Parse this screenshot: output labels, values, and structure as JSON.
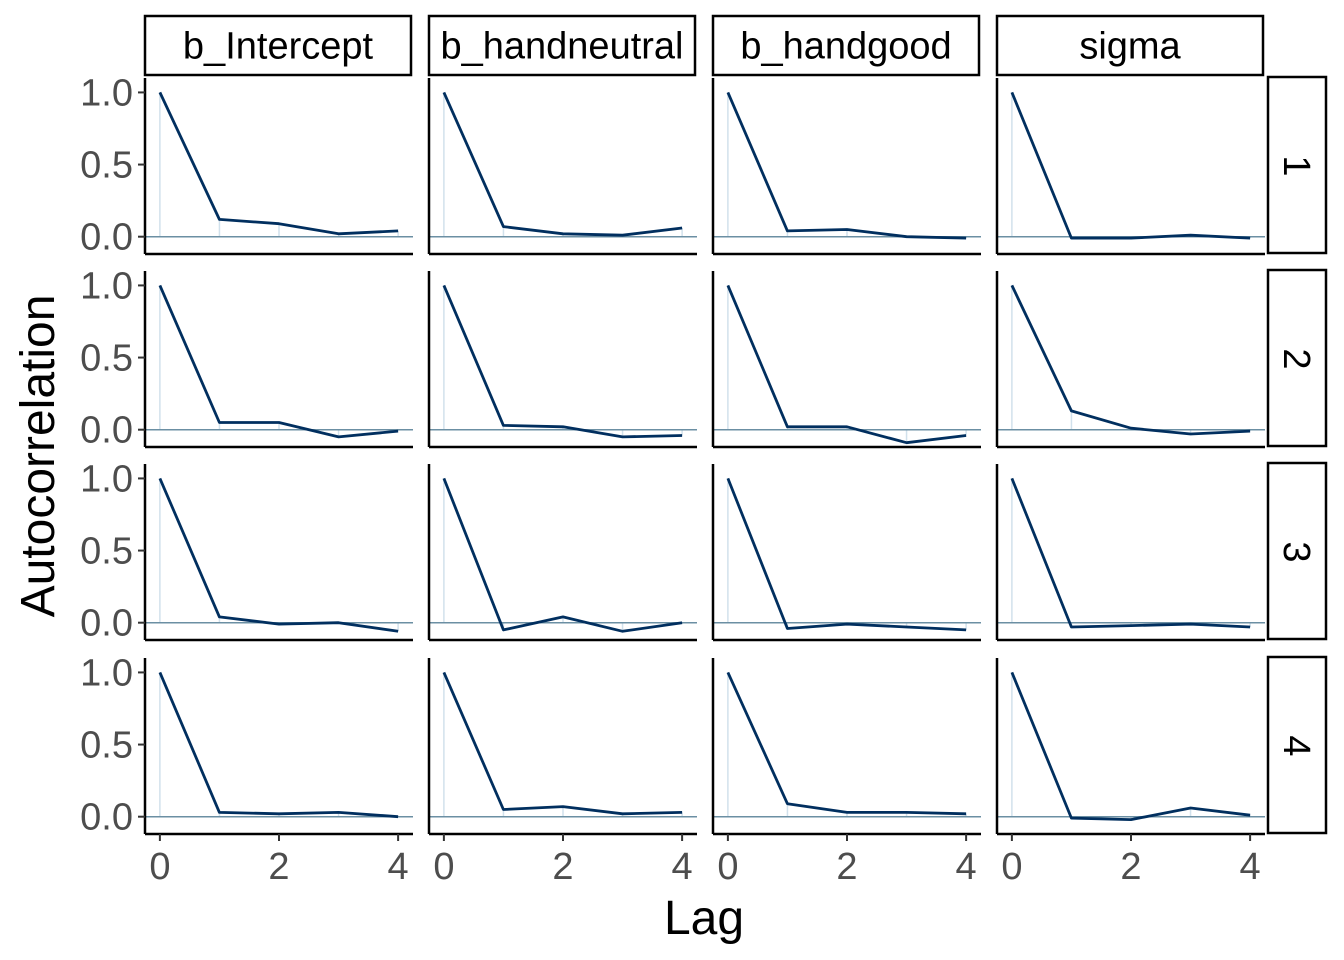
{
  "chart_data": {
    "type": "line",
    "xlabel": "Lag",
    "ylabel": "Autocorrelation",
    "x": [
      0,
      1,
      2,
      3,
      4
    ],
    "xticks": [
      "0",
      "2",
      "4"
    ],
    "yticks": [
      "0.0",
      "0.5",
      "1.0"
    ],
    "ylim": [
      -0.12,
      1.1
    ],
    "xlim": [
      -0.25,
      4.25
    ],
    "grid": false,
    "colors": {
      "line": "#012F5F",
      "zero_line": "#6B8FA3",
      "lag_bar": "#D1E1EC"
    },
    "columns": [
      "b_Intercept",
      "b_handneutral",
      "b_handgood",
      "sigma"
    ],
    "rows": [
      "1",
      "2",
      "3",
      "4"
    ],
    "series": [
      {
        "row": "1",
        "column": "b_Intercept",
        "values": [
          1.0,
          0.12,
          0.09,
          0.02,
          0.04
        ]
      },
      {
        "row": "1",
        "column": "b_handneutral",
        "values": [
          1.0,
          0.07,
          0.02,
          0.01,
          0.06
        ]
      },
      {
        "row": "1",
        "column": "b_handgood",
        "values": [
          1.0,
          0.04,
          0.05,
          0.0,
          -0.01
        ]
      },
      {
        "row": "1",
        "column": "sigma",
        "values": [
          1.0,
          -0.01,
          -0.01,
          0.01,
          -0.01
        ]
      },
      {
        "row": "2",
        "column": "b_Intercept",
        "values": [
          1.0,
          0.05,
          0.05,
          -0.05,
          -0.01
        ]
      },
      {
        "row": "2",
        "column": "b_handneutral",
        "values": [
          1.0,
          0.03,
          0.02,
          -0.05,
          -0.04
        ]
      },
      {
        "row": "2",
        "column": "b_handgood",
        "values": [
          1.0,
          0.02,
          0.02,
          -0.09,
          -0.04
        ]
      },
      {
        "row": "2",
        "column": "sigma",
        "values": [
          1.0,
          0.13,
          0.01,
          -0.03,
          -0.01
        ]
      },
      {
        "row": "3",
        "column": "b_Intercept",
        "values": [
          1.0,
          0.04,
          -0.01,
          0.0,
          -0.06
        ]
      },
      {
        "row": "3",
        "column": "b_handneutral",
        "values": [
          1.0,
          -0.05,
          0.04,
          -0.06,
          0.0
        ]
      },
      {
        "row": "3",
        "column": "b_handgood",
        "values": [
          1.0,
          -0.04,
          -0.01,
          -0.03,
          -0.05
        ]
      },
      {
        "row": "3",
        "column": "sigma",
        "values": [
          1.0,
          -0.03,
          -0.02,
          -0.01,
          -0.03
        ]
      },
      {
        "row": "4",
        "column": "b_Intercept",
        "values": [
          1.0,
          0.03,
          0.02,
          0.03,
          0.0
        ]
      },
      {
        "row": "4",
        "column": "b_handneutral",
        "values": [
          1.0,
          0.05,
          0.07,
          0.02,
          0.03
        ]
      },
      {
        "row": "4",
        "column": "b_handgood",
        "values": [
          1.0,
          0.09,
          0.03,
          0.03,
          0.02
        ]
      },
      {
        "row": "4",
        "column": "sigma",
        "values": [
          1.0,
          -0.01,
          -0.02,
          0.06,
          0.01
        ]
      }
    ]
  }
}
